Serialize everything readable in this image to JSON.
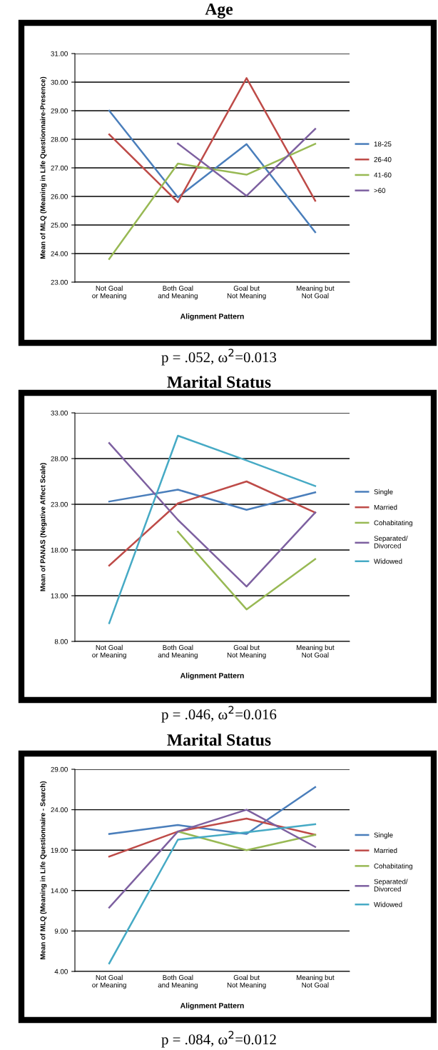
{
  "chart_data": [
    {
      "type": "line",
      "title": "Age",
      "ylabel": "Mean of MLQ (Meaning in Life Questionnaire-Presence)",
      "xlabel": "Alignment Pattern",
      "categories": [
        "Not Goal\nor Meaning",
        "Both Goal\nand Meaning",
        "Goal but\nNot Meaning",
        "Meaning but\nNot Goal"
      ],
      "series": [
        {
          "name": "18-25",
          "color": "#4a7ebb",
          "values": [
            29.0,
            25.97,
            27.83,
            24.75
          ]
        },
        {
          "name": "26-40",
          "color": "#be4b48",
          "values": [
            28.17,
            25.8,
            30.14,
            25.85
          ]
        },
        {
          "name": "41-60",
          "color": "#98b954",
          "values": [
            23.81,
            27.15,
            26.76,
            27.84
          ]
        },
        {
          "name": ">60",
          "color": "#7d60a0",
          "values": [
            null,
            27.85,
            26.02,
            28.36
          ]
        }
      ],
      "ylim": [
        23,
        31
      ],
      "yticks": [
        {
          "value": 23,
          "label": "23.00"
        },
        {
          "value": 24,
          "label": "24.00"
        },
        {
          "value": 25,
          "label": "25.00"
        },
        {
          "value": 26,
          "label": "26.00"
        },
        {
          "value": 27,
          "label": "27.00"
        },
        {
          "value": 28,
          "label": "28.00"
        },
        {
          "value": 29,
          "label": "29.00"
        },
        {
          "value": 30,
          "label": "30.00"
        },
        {
          "value": 31,
          "label": "31.00"
        }
      ],
      "grid": "y",
      "legend": "right",
      "marker": "none",
      "line_style": "solid",
      "annotations": [
        "p = .052, ω$^{2}$=0.013"
      ]
    },
    {
      "type": "line",
      "title": "Marital Status",
      "ylabel": "Mean of PANAS (Negative Affect Scale)",
      "xlabel": "Alignment Pattern",
      "categories": [
        "Not Goal\nor Meaning",
        "Both Goal\nand Meaning",
        "Goal but\nNot Meaning",
        "Meaning but\nNot Goal"
      ],
      "series": [
        {
          "name": "Single",
          "color": "#4a7ebb",
          "values": [
            23.3,
            24.6,
            22.4,
            24.3
          ]
        },
        {
          "name": "Married",
          "color": "#be4b48",
          "values": [
            16.3,
            23.1,
            25.5,
            22.1
          ]
        },
        {
          "name": "Cohabitating",
          "color": "#98b954",
          "values": [
            null,
            20.0,
            11.5,
            17.0
          ]
        },
        {
          "name": "Separated/\nDivorced",
          "color": "#7d60a0",
          "values": [
            29.7,
            21.3,
            14.0,
            22.1
          ]
        },
        {
          "name": "Widowed",
          "color": "#46aac5",
          "values": [
            10.0,
            30.5,
            27.8,
            25.0
          ]
        }
      ],
      "ylim": [
        8,
        33
      ],
      "yticks": [
        {
          "value": 8,
          "label": "8.00"
        },
        {
          "value": 13,
          "label": "13.00"
        },
        {
          "value": 18,
          "label": "18.00"
        },
        {
          "value": 23,
          "label": "23.00"
        },
        {
          "value": 28,
          "label": "28.00"
        },
        {
          "value": 33,
          "label": "33.00"
        }
      ],
      "grid": "y",
      "legend": "right",
      "marker": "none",
      "line_style": "solid",
      "annotations": [
        "p = .046, ω$^{2}$=0.016"
      ]
    },
    {
      "type": "line",
      "title": "Marital Status",
      "ylabel": "Mean of MLQ (Meaning in Life Questionnaire - Search)",
      "xlabel": "Alignment Pattern",
      "categories": [
        "Not Goal\nor Meaning",
        "Both Goal\nand Meaning",
        "Goal but\nNot Meaning",
        "Meaning but\nNot Goal"
      ],
      "series": [
        {
          "name": "Single",
          "color": "#4a7ebb",
          "values": [
            21.0,
            22.1,
            21.0,
            26.8
          ]
        },
        {
          "name": "Married",
          "color": "#be4b48",
          "values": [
            18.2,
            21.3,
            22.9,
            20.9
          ]
        },
        {
          "name": "Cohabitating",
          "color": "#98b954",
          "values": [
            null,
            21.3,
            19.0,
            20.9
          ]
        },
        {
          "name": "Separated/\nDivorced",
          "color": "#7d60a0",
          "values": [
            11.9,
            21.3,
            24.0,
            19.4
          ]
        },
        {
          "name": "Widowed",
          "color": "#46aac5",
          "values": [
            5.0,
            20.3,
            21.2,
            22.2
          ]
        }
      ],
      "ylim": [
        4,
        29
      ],
      "yticks": [
        {
          "value": 4,
          "label": "4.00"
        },
        {
          "value": 9,
          "label": "9.00"
        },
        {
          "value": 14,
          "label": "14.00"
        },
        {
          "value": 19,
          "label": "19.00"
        },
        {
          "value": 24,
          "label": "24.00"
        },
        {
          "value": 29,
          "label": "29.00"
        }
      ],
      "grid": "y",
      "legend": "right",
      "marker": "none",
      "line_style": "solid",
      "annotations": [
        "p = .084, ω$^{2}$=0.012"
      ]
    }
  ]
}
